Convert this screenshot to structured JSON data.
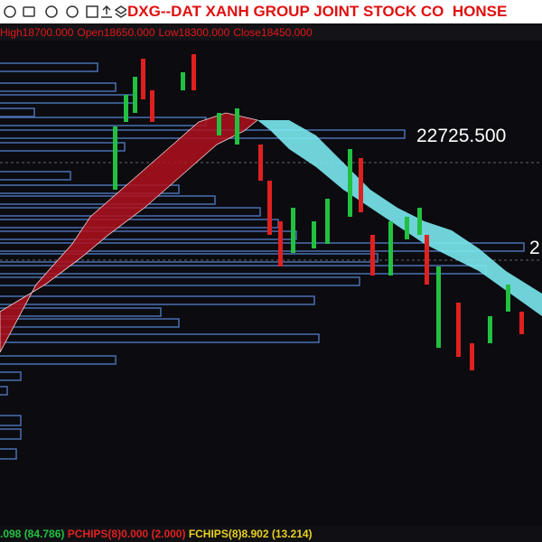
{
  "toolbar": {
    "title": "DXG--DAT XANH GROUP JOINT STOCK CO  HONSE"
  },
  "ohlc": {
    "high": "High18700.000",
    "open": "Open18650.000",
    "low": "Low18300.000",
    "close": "Close18450.000"
  },
  "price_labels": [
    "22725.500",
    "2"
  ],
  "footer": [
    ".098 (84.786)",
    "PCHIPS(8)0.000 (2.000)",
    "FCHIPS(8)8.902 (13.214)"
  ]
}
